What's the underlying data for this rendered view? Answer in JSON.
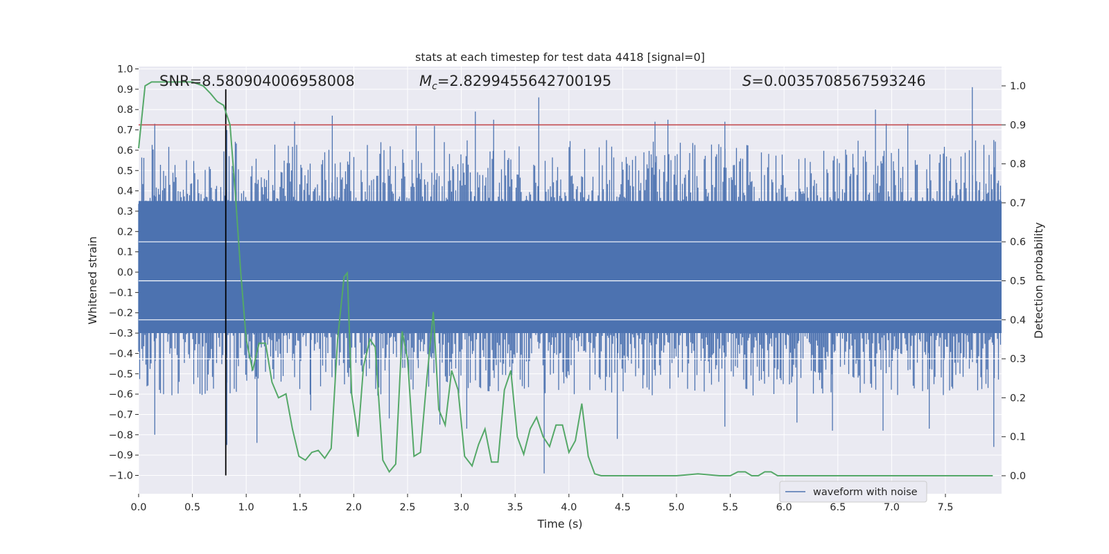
{
  "chart_data": {
    "type": "line",
    "title": "stats at each timestep for test data 4418 [signal=0]",
    "xlabel": "Time (s)",
    "ylabel_left": "Whitened strain",
    "ylabel_right": "Detection probability",
    "xlim": [
      0.0,
      7.99
    ],
    "ylim_left": [
      -1.09,
      1.0
    ],
    "ylim_right": [
      -0.05,
      1.05
    ],
    "x_ticks": [
      0.0,
      0.5,
      1.0,
      1.5,
      2.0,
      2.5,
      3.0,
      3.5,
      4.0,
      4.5,
      5.0,
      5.5,
      6.0,
      6.5,
      7.0,
      7.5
    ],
    "x_tick_labels": [
      "0.0",
      "0.5",
      "1.0",
      "1.5",
      "2.0",
      "2.5",
      "3.0",
      "3.5",
      "4.0",
      "4.5",
      "5.0",
      "5.5",
      "6.0",
      "6.5",
      "7.0",
      "7.5"
    ],
    "y_left_ticks": [
      1.0,
      0.9,
      0.8,
      0.7,
      0.6,
      0.5,
      0.4,
      0.3,
      0.2,
      0.1,
      0.0,
      -0.1,
      -0.2,
      -0.3,
      -0.4,
      -0.5,
      -0.6,
      -0.7,
      -0.8,
      -0.9,
      -1.0
    ],
    "y_left_tick_labels": [
      "1.0",
      "0.9",
      "0.8",
      "0.7",
      "0.6",
      "0.5",
      "0.4",
      "0.3",
      "0.2",
      "0.1",
      "0.0",
      "−0.1",
      "−0.2",
      "−0.3",
      "−0.4",
      "−0.5",
      "−0.6",
      "−0.7",
      "−0.8",
      "−0.9",
      "−1.0"
    ],
    "y_right_ticks": [
      1.0,
      0.9,
      0.8,
      0.7,
      0.6,
      0.5,
      0.4,
      0.3,
      0.2,
      0.1,
      0.0
    ],
    "y_right_tick_labels": [
      "1.0",
      "0.9",
      "0.8",
      "0.7",
      "0.6",
      "0.5",
      "0.4",
      "0.3",
      "0.2",
      "0.1",
      "0.0"
    ],
    "annotations": {
      "snr": "SNR=8.580904006958008",
      "mc_symbol": "M",
      "mc_sub": "c",
      "mc_value": "=2.8299455642700195",
      "s_symbol": "S",
      "s_value": "=0.0035708567593246"
    },
    "threshold_line": {
      "axis": "right",
      "y": 0.9,
      "color": "#c44e52"
    },
    "vertical_marker": {
      "x": 0.81,
      "y_range_left": [
        -1.0,
        0.9
      ],
      "color": "#000000"
    },
    "series": [
      {
        "name": "waveform with noise",
        "axis": "left",
        "color": "#4c72b0",
        "description": "whitened strain noise, dense band about ±0.3 with spikes to ±0.9",
        "band": [
          -0.3,
          0.35
        ],
        "spikes_up": [
          [
            0.15,
            0.73
          ],
          [
            0.82,
            0.7
          ],
          [
            1.45,
            0.74
          ],
          [
            1.8,
            0.77
          ],
          [
            2.58,
            0.72
          ],
          [
            2.75,
            0.72
          ],
          [
            3.13,
            0.79
          ],
          [
            3.3,
            0.75
          ],
          [
            3.72,
            0.86
          ],
          [
            4.8,
            0.74
          ],
          [
            4.92,
            0.75
          ],
          [
            5.45,
            0.74
          ],
          [
            6.85,
            0.8
          ],
          [
            6.95,
            0.73
          ],
          [
            7.15,
            0.73
          ],
          [
            7.75,
            0.91
          ],
          [
            7.95,
            0.65
          ]
        ],
        "spikes_down": [
          [
            0.15,
            -0.8
          ],
          [
            0.82,
            -0.85
          ],
          [
            1.1,
            -0.84
          ],
          [
            1.6,
            -0.68
          ],
          [
            2.33,
            -0.72
          ],
          [
            2.8,
            -0.75
          ],
          [
            3.05,
            -0.77
          ],
          [
            3.77,
            -0.99
          ],
          [
            4.45,
            -0.82
          ],
          [
            5.45,
            -0.76
          ],
          [
            6.12,
            -0.74
          ],
          [
            6.45,
            -0.78
          ],
          [
            6.92,
            -0.78
          ],
          [
            7.35,
            -0.77
          ],
          [
            7.95,
            -0.86
          ]
        ]
      },
      {
        "name": "detection probability",
        "axis": "right",
        "color": "#55a868",
        "x": [
          0.0,
          0.06,
          0.12,
          0.2,
          0.3,
          0.4,
          0.5,
          0.6,
          0.67,
          0.73,
          0.79,
          0.85,
          0.9,
          0.95,
          1.0,
          1.06,
          1.12,
          1.18,
          1.24,
          1.3,
          1.37,
          1.43,
          1.49,
          1.55,
          1.61,
          1.67,
          1.73,
          1.79,
          1.85,
          1.91,
          1.94,
          1.98,
          2.04,
          2.09,
          2.15,
          2.2,
          2.27,
          2.33,
          2.39,
          2.45,
          2.5,
          2.56,
          2.62,
          2.68,
          2.74,
          2.79,
          2.85,
          2.91,
          2.97,
          3.03,
          3.1,
          3.16,
          3.22,
          3.28,
          3.34,
          3.4,
          3.46,
          3.52,
          3.58,
          3.64,
          3.7,
          3.76,
          3.82,
          3.88,
          3.94,
          4.0,
          4.06,
          4.12,
          4.18,
          4.24,
          4.3,
          4.4,
          4.6,
          5.0,
          5.2,
          5.4,
          5.5,
          5.57,
          5.64,
          5.7,
          5.76,
          5.82,
          5.88,
          5.94,
          6.0,
          6.2,
          6.5,
          6.8,
          7.0,
          7.2,
          7.4,
          7.6,
          7.8,
          7.94
        ],
        "y": [
          0.84,
          1.0,
          1.01,
          1.01,
          1.01,
          1.01,
          1.01,
          1.0,
          0.98,
          0.96,
          0.95,
          0.9,
          0.72,
          0.52,
          0.35,
          0.27,
          0.34,
          0.34,
          0.24,
          0.2,
          0.21,
          0.12,
          0.05,
          0.04,
          0.06,
          0.065,
          0.045,
          0.07,
          0.35,
          0.51,
          0.52,
          0.21,
          0.1,
          0.28,
          0.35,
          0.33,
          0.04,
          0.01,
          0.03,
          0.37,
          0.3,
          0.05,
          0.06,
          0.25,
          0.42,
          0.17,
          0.13,
          0.27,
          0.22,
          0.05,
          0.025,
          0.08,
          0.12,
          0.035,
          0.035,
          0.22,
          0.27,
          0.1,
          0.055,
          0.12,
          0.15,
          0.1,
          0.075,
          0.13,
          0.13,
          0.06,
          0.09,
          0.185,
          0.05,
          0.005,
          0.0,
          0.0,
          0.0,
          0.0,
          0.005,
          0.0,
          0.0,
          0.01,
          0.01,
          0.0,
          0.0,
          0.01,
          0.01,
          0.0,
          0.0,
          0.0,
          0.0,
          0.0,
          0.0,
          0.0,
          0.0,
          0.0,
          0.0,
          0.0
        ]
      }
    ],
    "legend": {
      "location": "lower-right",
      "entries": [
        "waveform with noise"
      ]
    }
  }
}
